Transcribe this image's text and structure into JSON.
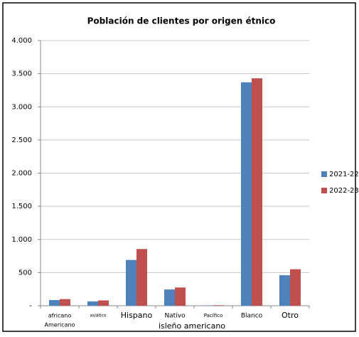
{
  "chart_data": {
    "type": "bar",
    "title": "Población de clientes por origen étnico",
    "categories": [
      [
        "africano",
        "Americano"
      ],
      [
        "asiático"
      ],
      [
        "Hispano"
      ],
      [
        "Nativo"
      ],
      [
        "Pacífico"
      ],
      [
        "Blanco"
      ],
      [
        "Otro"
      ]
    ],
    "annotation": "isleño americano",
    "series": [
      {
        "name": "2021-22",
        "color": "#4f81bd",
        "values": [
          85,
          65,
          690,
          245,
          5,
          3370,
          460
        ]
      },
      {
        "name": "2022-23",
        "color": "#c0504d",
        "values": [
          100,
          80,
          855,
          275,
          8,
          3430,
          550
        ]
      }
    ],
    "ylim": [
      0,
      4000
    ],
    "yticks": [
      {
        "value": 0,
        "label": "-"
      },
      500,
      {
        "value": 1000,
        "label": "1.000"
      },
      {
        "value": 1500,
        "label": "1.500"
      },
      {
        "value": 2000,
        "label": "2.000"
      },
      {
        "value": 2500,
        "label": "2.500"
      },
      {
        "value": 3000,
        "label": "3.000"
      },
      {
        "value": 3500,
        "label": "3.500"
      },
      {
        "value": 4000,
        "label": "4.000"
      }
    ],
    "grid": true,
    "legend": "right"
  }
}
